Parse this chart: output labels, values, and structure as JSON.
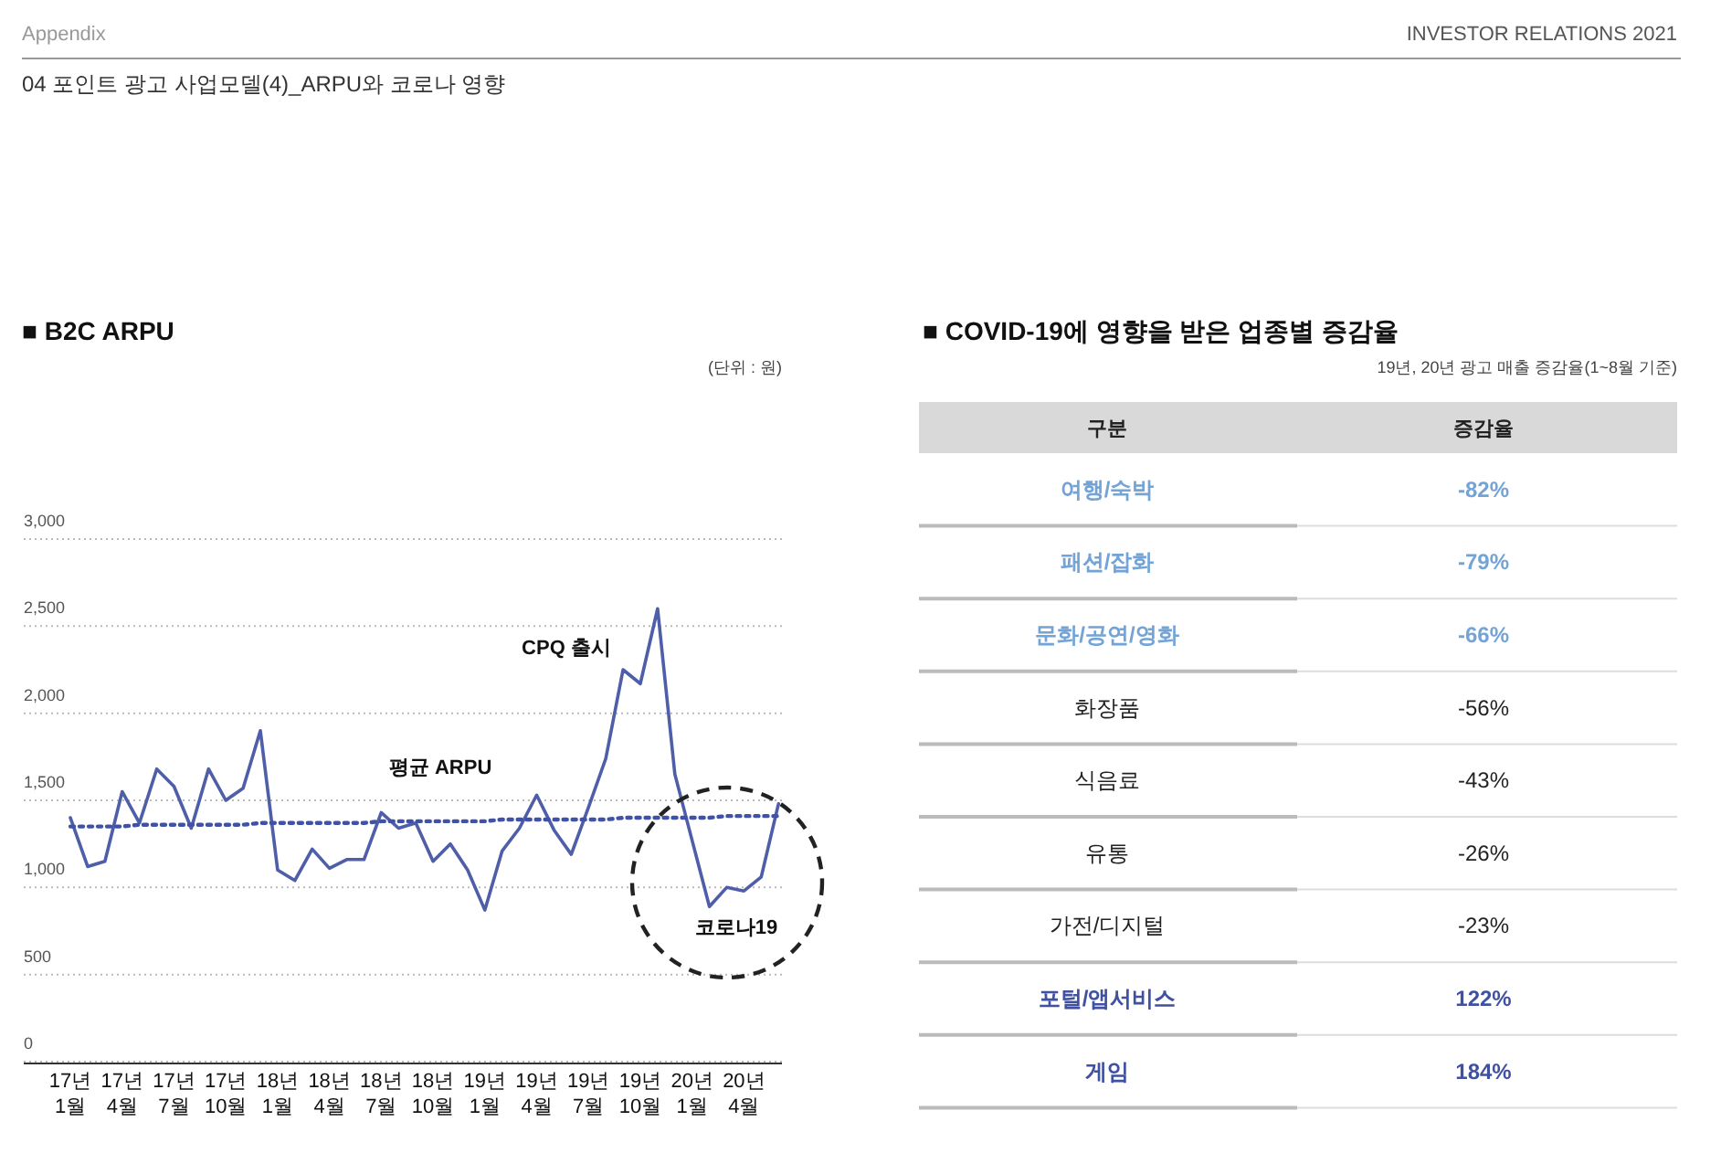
{
  "chart_data": [
    {
      "type": "line",
      "title": "■ B2C ARPU",
      "annotations": [
        "Appendix",
        "INVESTOR RELATIONS 2021",
        "04  포인트 광고 사업모델(4)_ARPU와 코로나 영향",
        "(단위 : 원)",
        "CPQ 출시",
        "코로나19"
      ],
      "categories": [
        "17년\n1월",
        null,
        null,
        "17년\n4월",
        null,
        null,
        "17년\n7월",
        null,
        null,
        "17년\n10월",
        null,
        null,
        "18년\n1월",
        null,
        null,
        "18년\n4월",
        null,
        null,
        "18년\n7월",
        null,
        null,
        "18년\n10월",
        null,
        null,
        "19년\n1월",
        null,
        null,
        "19년\n4월",
        null,
        null,
        "19년\n7월",
        null,
        null,
        "19년\n10월",
        null,
        null,
        "20년\n1월",
        null,
        null,
        "20년\n4월",
        null,
        null
      ],
      "series": [
        {
          "color": "#4f5ea8",
          "values": [
            1400,
            1120,
            1150,
            1550,
            1370,
            1680,
            1580,
            1340,
            1680,
            1500,
            1570,
            1900,
            1100,
            1040,
            1220,
            1110,
            1160,
            1160,
            1430,
            1340,
            1370,
            1150,
            1250,
            1100,
            870,
            1210,
            1340,
            1530,
            1330,
            1190,
            1460,
            1740,
            2250,
            2170,
            2600,
            1650,
            1270,
            890,
            1000,
            980,
            1060,
            1480
          ]
        },
        {
          "type": "line",
          "name": "평균 ARPU",
          "color": "#3f51a8",
          "line_style": "dotted",
          "values": [
            1350,
            1350,
            1350,
            1350,
            1360,
            1360,
            1360,
            1360,
            1360,
            1360,
            1360,
            1370,
            1370,
            1370,
            1370,
            1370,
            1370,
            1370,
            1380,
            1380,
            1380,
            1380,
            1380,
            1380,
            1380,
            1390,
            1390,
            1390,
            1390,
            1390,
            1390,
            1390,
            1400,
            1400,
            1400,
            1400,
            1400,
            1400,
            1410,
            1410,
            1410,
            1410
          ]
        }
      ],
      "ylim": [
        0,
        3000
      ],
      "yticks": [
        0,
        500,
        {
          "value": 1000,
          "label": "1,000"
        },
        {
          "value": 1500,
          "label": "1,500"
        },
        {
          "value": 2000,
          "label": "2,000"
        },
        {
          "value": 2500,
          "label": "2,500"
        },
        {
          "value": 3000,
          "label": "3,000"
        }
      ],
      "grid": "y",
      "marker": "none",
      "line_style": "solid",
      "legend": false
    },
    {
      "type": "other",
      "title": "■ COVID-19에 영향을 받은 업종별 증감율",
      "subtitle": "19년, 20년 광고 매출 증감율(1~8월 기준)",
      "annotations": [
        "구분",
        "증감율"
      ],
      "categories": [
        "여행/숙박",
        "패션/잡화",
        "문화/공연/영화",
        "화장품",
        "식음료",
        "유통",
        "가전/디지털",
        "포털/앱서비스",
        "게임"
      ],
      "value_labels": [
        "-82%",
        "-79%",
        "-66%",
        "-56%",
        "-43%",
        "-26%",
        "-23%",
        "122%",
        "184%"
      ],
      "colors": [
        "#74a3d6",
        "#74a3d6",
        "#74a3d6",
        "#222222",
        "#222222",
        "#222222",
        "#222222",
        "#3f51a0",
        "#3f51a0"
      ]
    }
  ]
}
